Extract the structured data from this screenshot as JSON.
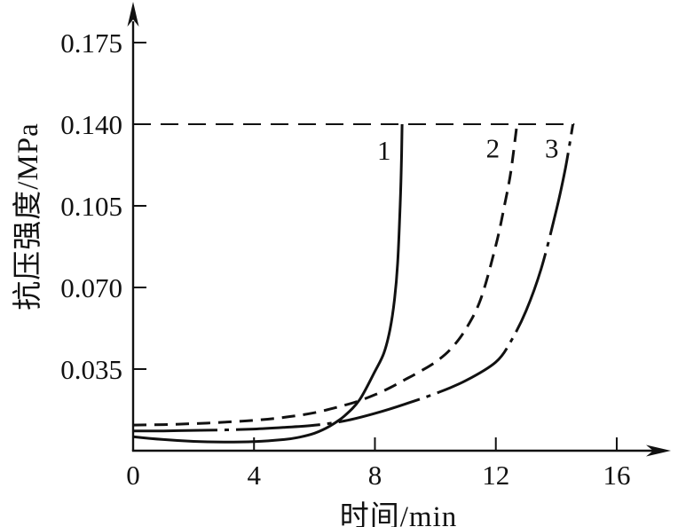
{
  "figure": {
    "background": "#ffffff",
    "ink_color": "#111111"
  },
  "chart_data": {
    "type": "line",
    "title": "",
    "xlabel": "时间/min",
    "ylabel": "抗压强度/MPa",
    "xlim": [
      0,
      17.7
    ],
    "ylim": [
      0,
      0.19
    ],
    "grid": false,
    "legend_position": "none",
    "x_ticks": [
      0,
      4,
      8,
      12,
      16
    ],
    "x_tick_labels": [
      "0",
      "4",
      "8",
      "12",
      "16"
    ],
    "y_ticks": [
      0.035,
      0.07,
      0.105,
      0.14,
      0.175
    ],
    "y_tick_labels": [
      "0.035",
      "0.070",
      "0.105",
      "0.140",
      "0.175"
    ],
    "reference_line": {
      "value": 0.14,
      "x_start": 0,
      "x_end": 14.6,
      "style": "dashed"
    },
    "series": [
      {
        "name": "1",
        "style": "solid",
        "label": {
          "text": "1",
          "x": 8.3,
          "y": 0.129
        },
        "points": [
          [
            0,
            0.006
          ],
          [
            1,
            0.0048
          ],
          [
            2,
            0.004
          ],
          [
            3,
            0.0037
          ],
          [
            4,
            0.0039
          ],
          [
            5,
            0.0048
          ],
          [
            5.5,
            0.0058
          ],
          [
            6,
            0.0075
          ],
          [
            6.5,
            0.0105
          ],
          [
            7,
            0.015
          ],
          [
            7.5,
            0.022
          ],
          [
            8,
            0.034
          ],
          [
            8.3,
            0.042
          ],
          [
            8.5,
            0.052
          ],
          [
            8.65,
            0.065
          ],
          [
            8.75,
            0.08
          ],
          [
            8.82,
            0.1
          ],
          [
            8.87,
            0.12
          ],
          [
            8.9,
            0.14
          ]
        ]
      },
      {
        "name": "2",
        "style": "dashed",
        "label": {
          "text": "2",
          "x": 11.9,
          "y": 0.13
        },
        "points": [
          [
            0,
            0.011
          ],
          [
            1,
            0.0112
          ],
          [
            2,
            0.0116
          ],
          [
            3,
            0.0122
          ],
          [
            4,
            0.013
          ],
          [
            5,
            0.0143
          ],
          [
            6,
            0.0163
          ],
          [
            7,
            0.0195
          ],
          [
            7.5,
            0.0215
          ],
          [
            8,
            0.024
          ],
          [
            8.5,
            0.027
          ],
          [
            9,
            0.0305
          ],
          [
            9.5,
            0.034
          ],
          [
            10,
            0.038
          ],
          [
            10.5,
            0.0435
          ],
          [
            11,
            0.052
          ],
          [
            11.5,
            0.065
          ],
          [
            12,
            0.088
          ],
          [
            12.3,
            0.106
          ],
          [
            12.5,
            0.12
          ],
          [
            12.7,
            0.14
          ]
        ]
      },
      {
        "name": "3",
        "style": "dashdot",
        "label": {
          "text": "3",
          "x": 13.85,
          "y": 0.13
        },
        "points": [
          [
            0,
            0.0085
          ],
          [
            1,
            0.0085
          ],
          [
            2,
            0.0087
          ],
          [
            3,
            0.0089
          ],
          [
            4,
            0.0093
          ],
          [
            5,
            0.01
          ],
          [
            6,
            0.0109
          ],
          [
            7,
            0.0128
          ],
          [
            8,
            0.016
          ],
          [
            9,
            0.02
          ],
          [
            10,
            0.0245
          ],
          [
            11,
            0.03
          ],
          [
            12,
            0.038
          ],
          [
            12.5,
            0.047
          ],
          [
            13,
            0.06
          ],
          [
            13.5,
            0.078
          ],
          [
            14,
            0.103
          ],
          [
            14.3,
            0.121
          ],
          [
            14.55,
            0.14
          ]
        ]
      }
    ]
  }
}
